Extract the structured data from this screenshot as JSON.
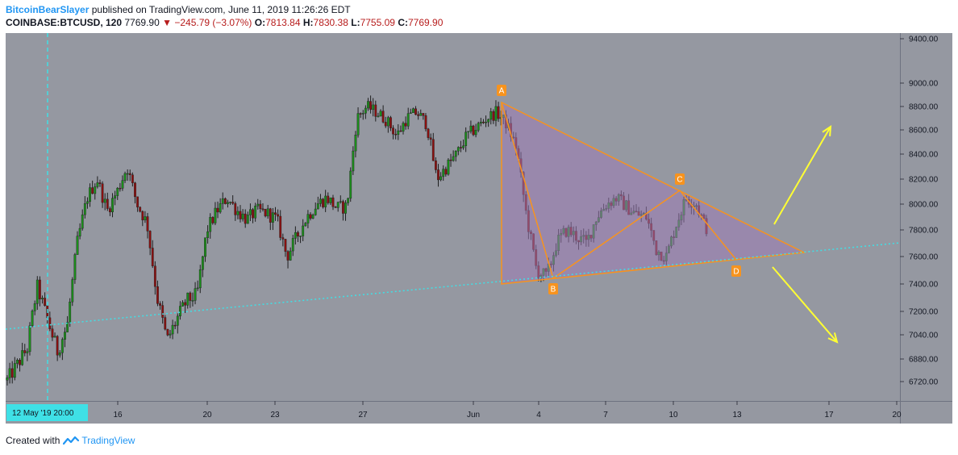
{
  "header": {
    "author": "BitcoinBearSlayer",
    "published": "published on TradingView.com, June 11, 2019 11:26:26 EDT",
    "symbol": "COINBASE:BTCUSD, 120",
    "last": "7769.90",
    "change_arrow": "▼",
    "change": "−245.79 (−3.07%)",
    "o_label": "O:",
    "o_value": "7813.84",
    "h_label": "H:",
    "h_value": "7830.38",
    "l_label": "L:",
    "l_value": "7755.09",
    "c_label": "C:",
    "c_value": "7769.90"
  },
  "footer": {
    "prefix": "Created with",
    "brand": "TradingView",
    "icon": "tradingview-logo-icon"
  },
  "colors": {
    "plot_bg": "#9598a1",
    "up": "#1b8f1b",
    "down": "#8b1010",
    "triangle_fill": "#9c7cb6",
    "pattern_line": "#f7931e",
    "trend_line": "#3fe0e6",
    "arrow": "#ffff33",
    "cursor_label_bg": "#3fe0e6"
  },
  "chart_data": {
    "type": "candlestick",
    "symbol": "COINBASE:BTCUSD",
    "interval": "120",
    "y_axis": {
      "side": "right",
      "ticks": [
        6720,
        6880,
        7040,
        7200,
        7400,
        7600,
        7800,
        8000,
        8200,
        8400,
        8600,
        8800,
        9000,
        9400
      ],
      "tick_labels": [
        "6720.00",
        "6880.00",
        "7040.00",
        "7200.00",
        "7400.00",
        "7600.00",
        "7800.00",
        "8000.00",
        "8200.00",
        "8400.00",
        "8600.00",
        "8800.00",
        "9000.00",
        "9400.00"
      ]
    },
    "x_axis": {
      "tick_labels": [
        "16",
        "20",
        "23",
        "27",
        "Jun",
        "4",
        "7",
        "10",
        "13",
        "17",
        "20"
      ],
      "cursor_label": "12 May '19   20:00"
    },
    "price_path": [
      [
        0,
        6730
      ],
      [
        2,
        6950
      ],
      [
        3,
        7380
      ],
      [
        4,
        7150
      ],
      [
        5,
        6930
      ],
      [
        6,
        7100
      ],
      [
        7,
        7700
      ],
      [
        8,
        8050
      ],
      [
        9,
        8200
      ],
      [
        10,
        7950
      ],
      [
        11,
        8100
      ],
      [
        12,
        8300
      ],
      [
        13,
        8000
      ],
      [
        14,
        7850
      ],
      [
        15,
        7300
      ],
      [
        16,
        7000
      ],
      [
        17,
        7150
      ],
      [
        18,
        7280
      ],
      [
        19,
        7320
      ],
      [
        20,
        7800
      ],
      [
        21,
        7950
      ],
      [
        22,
        8050
      ],
      [
        23,
        7950
      ],
      [
        24,
        7880
      ],
      [
        25,
        7950
      ],
      [
        26,
        7930
      ],
      [
        27,
        7880
      ],
      [
        28,
        7600
      ],
      [
        29,
        7750
      ],
      [
        30,
        7900
      ],
      [
        31,
        8000
      ],
      [
        32,
        8050
      ],
      [
        33,
        7970
      ],
      [
        34,
        7980
      ],
      [
        35,
        8700
      ],
      [
        36,
        8800
      ],
      [
        37,
        8750
      ],
      [
        38,
        8680
      ],
      [
        39,
        8550
      ],
      [
        40,
        8700
      ],
      [
        41,
        8750
      ],
      [
        42,
        8650
      ],
      [
        43,
        8200
      ],
      [
        44,
        8300
      ],
      [
        45,
        8400
      ],
      [
        46,
        8550
      ],
      [
        47,
        8620
      ],
      [
        48,
        8700
      ],
      [
        49,
        8750
      ],
      [
        50,
        8650
      ],
      [
        51,
        8450
      ],
      [
        52,
        7900
      ],
      [
        53,
        7500
      ],
      [
        54,
        7450
      ],
      [
        55,
        7700
      ],
      [
        56,
        7800
      ],
      [
        57,
        7750
      ],
      [
        58,
        7700
      ],
      [
        59,
        7900
      ],
      [
        60,
        8000
      ],
      [
        61,
        8050
      ],
      [
        62,
        7980
      ],
      [
        63,
        7920
      ],
      [
        64,
        7900
      ],
      [
        65,
        7650
      ],
      [
        66,
        7600
      ],
      [
        67,
        7850
      ],
      [
        68,
        8050
      ],
      [
        69,
        8000
      ],
      [
        70,
        7800
      ]
    ],
    "price_path_note": "x = bar index in 2-hour bars (approximate), y = price in USD (approximate)",
    "pattern": {
      "points": [
        {
          "label": "A",
          "price": 8820
        },
        {
          "label": "B",
          "price": 7420
        },
        {
          "label": "C",
          "price": 8100
        },
        {
          "label": "D",
          "price": 7570
        }
      ],
      "triangle": "descending triangle from A toward apex near 7620",
      "support_trendline": "rising dotted line from ~7060 to ~7680",
      "scenarios": [
        "breakout up",
        "breakdown down"
      ]
    },
    "grid": false,
    "legend": "none"
  }
}
